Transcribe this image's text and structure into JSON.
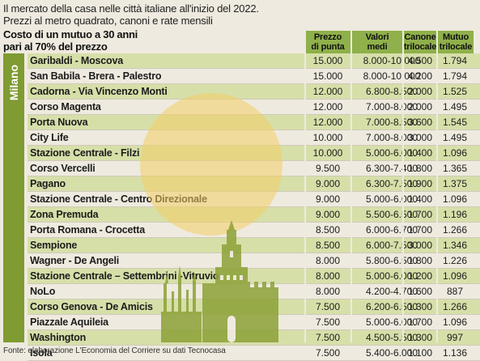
{
  "header": {
    "line1": "Il mercato della casa nelle  città italiane all'inizio del 2022.",
    "line2": "Prezzi al metro quadrato, canoni e rate mensili",
    "subtitle_line1": "Costo di un mutuo a 30 anni",
    "subtitle_line2": "pari al 70% del prezzo"
  },
  "columns": {
    "prezzo_l1": "Prezzo",
    "prezzo_l2": "di punta",
    "valori_l1": "Valori",
    "valori_l2": "medi",
    "canone_l1": "Canone",
    "canone_l2": "trilocale",
    "mutuo_l1": "Mutuo",
    "mutuo_l2": "trilocale"
  },
  "city": "Milano",
  "rows": [
    {
      "zona": "Garibaldi - Moscova",
      "prezzo": "15.000",
      "valori": "8.000-10.000",
      "canone": "4.500",
      "mutuo": "1.794"
    },
    {
      "zona": "San Babila - Brera - Palestro",
      "prezzo": "15.000",
      "valori": "8.000-10.000",
      "canone": "4.200",
      "mutuo": "1.794"
    },
    {
      "zona": "Cadorna - Via Vincenzo Monti",
      "prezzo": "12.000",
      "valori": "6.800-8.500",
      "canone": "2.000",
      "mutuo": "1.525"
    },
    {
      "zona": "Corso Magenta",
      "prezzo": "12.000",
      "valori": "7.000-8.000",
      "canone": "2.000",
      "mutuo": "1.495"
    },
    {
      "zona": "Porta Nuova",
      "prezzo": "12.000",
      "valori": "7.000-8.500",
      "canone": "3.600",
      "mutuo": "1.545"
    },
    {
      "zona": "City Life",
      "prezzo": "10.000",
      "valori": "7.000-8.000",
      "canone": "3.000",
      "mutuo": "1.495"
    },
    {
      "zona": "Stazione Centrale - Filzi",
      "prezzo": "10.000",
      "valori": "5.000-6.000",
      "canone": "1.400",
      "mutuo": "1.096"
    },
    {
      "zona": "Corso Vercelli",
      "prezzo": "9.500",
      "valori": "6.300-7.400",
      "canone": "1.800",
      "mutuo": "1.365"
    },
    {
      "zona": "Pagano",
      "prezzo": "9.000",
      "valori": "6.300-7.500",
      "canone": "1.900",
      "mutuo": "1.375"
    },
    {
      "zona": "Stazione Centrale - Centro Direzionale",
      "prezzo": "9.000",
      "valori": "5.000-6.000",
      "canone": "1.400",
      "mutuo": "1.096"
    },
    {
      "zona": "Zona Premuda",
      "prezzo": "9.000",
      "valori": "5.500-6.500",
      "canone": "1.700",
      "mutuo": "1.196"
    },
    {
      "zona": "Porta Romana - Crocetta",
      "prezzo": "8.500",
      "valori": "6.000-6.700",
      "canone": "1.700",
      "mutuo": "1.266"
    },
    {
      "zona": "Sempione",
      "prezzo": "8.500",
      "valori": "6.000-7.500",
      "canone": "3.000",
      "mutuo": "1.346"
    },
    {
      "zona": "Wagner - De Angeli",
      "prezzo": "8.000",
      "valori": "5.800-6.500",
      "canone": "1.800",
      "mutuo": "1.226"
    },
    {
      "zona": "Stazione Centrale – Settembrini -Vitruvio",
      "prezzo": "8.000",
      "valori": "5.000-6.000",
      "canone": "1.200",
      "mutuo": "1.096"
    },
    {
      "zona": "NoLo",
      "prezzo": "8.000",
      "valori": "4.200-4.700",
      "canone": "1.600",
      "mutuo": "887"
    },
    {
      "zona": "Corso Genova - De Amicis",
      "prezzo": "7.500",
      "valori": "6.200-6.500",
      "canone": "1.300",
      "mutuo": "1.266"
    },
    {
      "zona": "Piazzale Aquileia",
      "prezzo": "7.500",
      "valori": "5.000-6.000",
      "canone": "1.700",
      "mutuo": "1.096"
    },
    {
      "zona": "Washington",
      "prezzo": "7.500",
      "valori": "4.500-5.500",
      "canone": "1.300",
      "mutuo": "997"
    },
    {
      "zona": "Isola",
      "prezzo": "7.500",
      "valori": "5.400-6.000",
      "canone": "1.100",
      "mutuo": "1.136"
    }
  ],
  "footer": "Fonte: elaborazione L'Economia del Corriere su dati Tecnocasa",
  "colors": {
    "header_green": "#8fb04a",
    "sidebar_green": "#7f9b32",
    "row_tint": "#d7dfa9",
    "sun": "#f3cd64"
  }
}
